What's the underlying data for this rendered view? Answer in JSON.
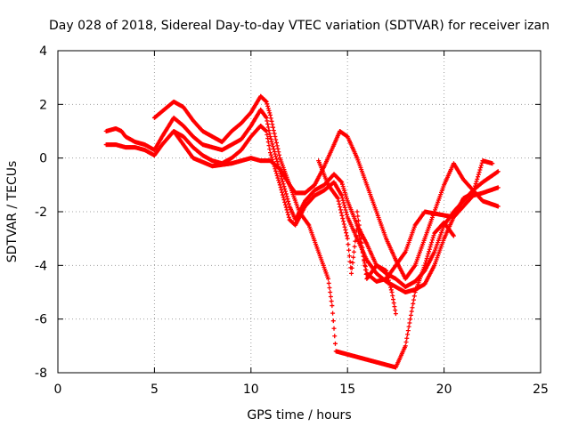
{
  "chart_data": {
    "type": "scatter",
    "title": "Day 028 of 2018, Sidereal Day-to-day VTEC variation (SDTVAR) for receiver izan",
    "xlabel": "GPS time / hours",
    "ylabel": "SDTVAR / TECUs",
    "xlim": [
      0,
      25
    ],
    "ylim": [
      -8,
      4
    ],
    "xticks": [
      0,
      5,
      10,
      15,
      20,
      25
    ],
    "yticks": [
      -8,
      -6,
      -4,
      -2,
      0,
      2,
      4
    ],
    "grid": true,
    "marker": "+",
    "color": "#ff0000",
    "series": [
      {
        "values": [
          [
            2.5,
            1.0
          ],
          [
            3.0,
            1.1
          ],
          [
            3.3,
            1.0
          ],
          [
            3.5,
            0.8
          ],
          [
            4.0,
            0.6
          ],
          [
            4.5,
            0.5
          ],
          [
            5.0,
            0.3
          ],
          [
            5.4,
            0.8
          ],
          [
            6.0,
            1.5
          ],
          [
            6.5,
            1.2
          ],
          [
            7.0,
            0.8
          ],
          [
            7.5,
            0.5
          ],
          [
            8.0,
            0.4
          ],
          [
            8.5,
            0.3
          ],
          [
            9.0,
            0.5
          ],
          [
            9.5,
            0.7
          ],
          [
            10.0,
            1.2
          ],
          [
            10.5,
            1.8
          ],
          [
            10.8,
            1.5
          ],
          [
            11.0,
            0.8
          ],
          [
            11.5,
            -0.5
          ],
          [
            12.0,
            -1.8
          ],
          [
            12.3,
            -2.3
          ],
          [
            12.8,
            -1.6
          ],
          [
            13.3,
            -1.2
          ],
          [
            13.8,
            -1.0
          ],
          [
            14.3,
            -0.6
          ],
          [
            14.7,
            -0.9
          ],
          [
            15.0,
            -1.6
          ],
          [
            15.5,
            -2.5
          ],
          [
            16.0,
            -3.2
          ],
          [
            16.5,
            -4.0
          ],
          [
            17.0,
            -4.3
          ],
          [
            17.5,
            -4.5
          ],
          [
            18.0,
            -4.8
          ],
          [
            18.5,
            -4.6
          ],
          [
            19.0,
            -4.2
          ],
          [
            19.5,
            -3.5
          ],
          [
            20.0,
            -2.5
          ],
          [
            20.5,
            -2.0
          ],
          [
            21.0,
            -1.6
          ],
          [
            21.5,
            -1.2
          ],
          [
            22.0,
            -0.9
          ],
          [
            22.8,
            -0.5
          ]
        ]
      },
      {
        "values": [
          [
            2.5,
            0.5
          ],
          [
            3.0,
            0.5
          ],
          [
            3.5,
            0.4
          ],
          [
            4.0,
            0.4
          ],
          [
            4.5,
            0.3
          ],
          [
            5.0,
            0.1
          ],
          [
            5.4,
            0.5
          ],
          [
            6.0,
            1.0
          ],
          [
            6.5,
            0.8
          ],
          [
            7.0,
            0.4
          ],
          [
            7.5,
            0.1
          ],
          [
            8.0,
            -0.1
          ],
          [
            8.5,
            -0.2
          ],
          [
            9.0,
            0.0
          ],
          [
            9.5,
            0.3
          ],
          [
            10.0,
            0.8
          ],
          [
            10.5,
            1.2
          ],
          [
            10.8,
            1.0
          ],
          [
            11.0,
            0.2
          ],
          [
            11.5,
            -1.0
          ],
          [
            12.0,
            -2.3
          ],
          [
            12.3,
            -2.5
          ],
          [
            12.8,
            -1.8
          ],
          [
            13.3,
            -1.4
          ],
          [
            13.8,
            -1.2
          ],
          [
            14.3,
            -0.9
          ],
          [
            14.7,
            -1.4
          ],
          [
            15.0,
            -2.2
          ],
          [
            15.5,
            -3.0
          ],
          [
            16.0,
            -3.8
          ],
          [
            16.5,
            -4.3
          ],
          [
            17.0,
            -4.6
          ],
          [
            17.5,
            -4.8
          ],
          [
            18.0,
            -5.0
          ],
          [
            18.5,
            -4.9
          ],
          [
            19.0,
            -4.7
          ],
          [
            19.5,
            -4.0
          ],
          [
            20.0,
            -3.0
          ],
          [
            20.5,
            -2.2
          ],
          [
            21.0,
            -1.8
          ],
          [
            21.5,
            -1.4
          ],
          [
            22.0,
            -1.3
          ],
          [
            22.8,
            -1.1
          ]
        ]
      },
      {
        "values": [
          [
            5.0,
            1.5
          ],
          [
            5.5,
            1.8
          ],
          [
            6.0,
            2.1
          ],
          [
            6.5,
            1.9
          ],
          [
            7.0,
            1.4
          ],
          [
            7.5,
            1.0
          ],
          [
            8.0,
            0.8
          ],
          [
            8.5,
            0.6
          ],
          [
            9.0,
            1.0
          ],
          [
            9.5,
            1.3
          ],
          [
            10.0,
            1.7
          ],
          [
            10.5,
            2.3
          ],
          [
            10.8,
            2.1
          ],
          [
            11.0,
            1.6
          ],
          [
            11.5,
            0.0
          ],
          [
            12.0,
            -1.0
          ],
          [
            12.3,
            -1.3
          ],
          [
            12.8,
            -1.3
          ],
          [
            13.3,
            -1.0
          ],
          [
            13.8,
            -0.3
          ],
          [
            14.3,
            0.5
          ],
          [
            14.6,
            1.0
          ],
          [
            15.0,
            0.8
          ],
          [
            15.5,
            0.0
          ],
          [
            16.0,
            -1.0
          ],
          [
            16.5,
            -2.0
          ],
          [
            17.0,
            -3.0
          ],
          [
            17.5,
            -3.8
          ],
          [
            18.0,
            -4.5
          ],
          [
            18.5,
            -4.0
          ],
          [
            19.0,
            -3.0
          ],
          [
            19.5,
            -2.0
          ],
          [
            20.0,
            -1.0
          ],
          [
            20.5,
            -0.2
          ],
          [
            21.0,
            -0.8
          ],
          [
            21.5,
            -1.2
          ],
          [
            22.0,
            -1.6
          ],
          [
            22.8,
            -1.8
          ]
        ]
      },
      {
        "values": [
          [
            6.0,
            1.0
          ],
          [
            7.0,
            0.0
          ],
          [
            8.0,
            -0.3
          ],
          [
            9.0,
            -0.2
          ],
          [
            10.0,
            0.0
          ],
          [
            10.5,
            -0.1
          ],
          [
            11.0,
            -0.1
          ],
          [
            11.5,
            -0.4
          ],
          [
            12.0,
            -1.0
          ],
          [
            12.5,
            -2.0
          ],
          [
            13.0,
            -2.5
          ],
          [
            13.5,
            -3.5
          ],
          [
            14.0,
            -4.5
          ],
          [
            14.2,
            -5.5
          ],
          [
            14.4,
            -7.2
          ],
          [
            17.5,
            -7.8
          ],
          [
            18.0,
            -7.0
          ],
          [
            18.5,
            -5.0
          ],
          [
            19.0,
            -4.0
          ],
          [
            19.5,
            -2.8
          ],
          [
            20.0,
            -2.4
          ],
          [
            20.5,
            -2.9
          ]
        ]
      },
      {
        "values": [
          [
            15.5,
            -2.0
          ],
          [
            15.8,
            -3.5
          ],
          [
            16.0,
            -4.5
          ],
          [
            16.5,
            -4.0
          ],
          [
            17.0,
            -4.2
          ],
          [
            17.3,
            -5.0
          ],
          [
            17.5,
            -5.8
          ]
        ]
      },
      {
        "values": [
          [
            13.5,
            -0.1
          ],
          [
            14.0,
            -1.0
          ],
          [
            14.5,
            -1.5
          ],
          [
            15.0,
            -3.0
          ],
          [
            15.2,
            -4.3
          ],
          [
            15.5,
            -2.5
          ],
          [
            16.0,
            -4.3
          ],
          [
            16.5,
            -4.6
          ],
          [
            17.0,
            -4.5
          ],
          [
            17.5,
            -4.0
          ],
          [
            18.0,
            -3.5
          ],
          [
            18.5,
            -2.5
          ],
          [
            19.0,
            -2.0
          ],
          [
            20.5,
            -2.2
          ],
          [
            21.0,
            -1.5
          ],
          [
            21.5,
            -1.3
          ],
          [
            22.0,
            -0.1
          ],
          [
            22.5,
            -0.2
          ]
        ]
      }
    ]
  }
}
